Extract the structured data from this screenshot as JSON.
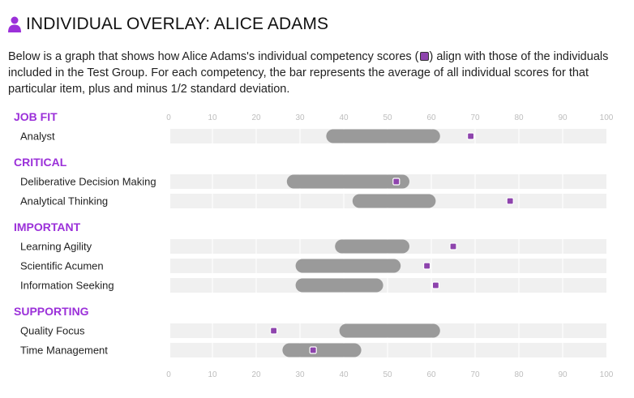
{
  "header": {
    "title": "INDIVIDUAL OVERLAY: ALICE ADAMS",
    "description_pre": "Below is a graph that shows how Alice Adams's individual competency scores (",
    "description_post": ") align with those of the individuals included in the Test Group. For each competency, the bar represents the average of all individual scores for that particular item, plus and minus 1/2 standard deviation."
  },
  "colors": {
    "section": "#9b30d9",
    "marker": "#8e44ad",
    "bar": "#9a9a9a",
    "track": "#f0f0f0"
  },
  "chart_data": {
    "type": "bar",
    "orientation": "horizontal-range",
    "xlim": [
      0,
      100
    ],
    "ticks": [
      0,
      10,
      20,
      30,
      40,
      50,
      60,
      70,
      80,
      90,
      100
    ],
    "sections": [
      {
        "name": "JOB FIT",
        "items": [
          {
            "label": "Analyst",
            "range": [
              36,
              62
            ],
            "individual": 69
          }
        ]
      },
      {
        "name": "CRITICAL",
        "items": [
          {
            "label": "Deliberative Decision Making",
            "range": [
              27,
              55
            ],
            "individual": 52
          },
          {
            "label": "Analytical Thinking",
            "range": [
              42,
              61
            ],
            "individual": 78
          }
        ]
      },
      {
        "name": "IMPORTANT",
        "items": [
          {
            "label": "Learning Agility",
            "range": [
              38,
              55
            ],
            "individual": 65
          },
          {
            "label": "Scientific Acumen",
            "range": [
              29,
              53
            ],
            "individual": 59
          },
          {
            "label": "Information Seeking",
            "range": [
              29,
              49
            ],
            "individual": 61
          }
        ]
      },
      {
        "name": "SUPPORTING",
        "items": [
          {
            "label": "Quality Focus",
            "range": [
              39,
              62
            ],
            "individual": 24
          },
          {
            "label": "Time Management",
            "range": [
              26,
              44
            ],
            "individual": 33
          }
        ]
      }
    ]
  }
}
